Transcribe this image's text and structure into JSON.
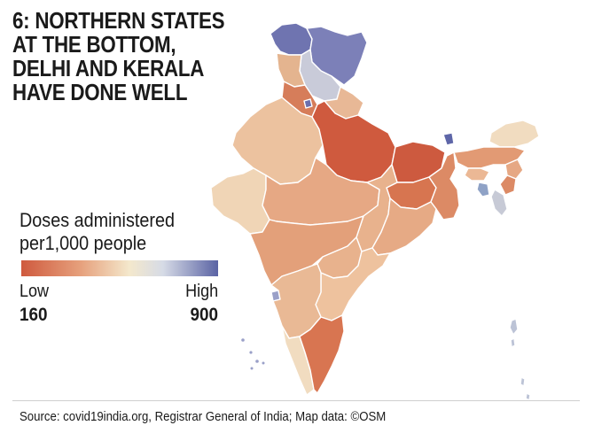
{
  "title_lines": [
    "6: NORTHERN STATES",
    "AT THE BOTTOM,",
    "DELHI AND KERALA",
    "HAVE DONE WELL"
  ],
  "legend": {
    "title_lines": [
      "Doses administered",
      "per1,000 people"
    ],
    "low_label": "Low",
    "high_label": "High",
    "min_value": "160",
    "max_value": "900",
    "color_low": "#cf5a3e",
    "color_mid": "#f4e8cc",
    "color_high": "#5a63a4"
  },
  "source": "Source: covid19india.org, Registrar General of India; Map data: ©OSM",
  "map": {
    "regions": [
      {
        "name": "jammu-kashmir",
        "color": "#6f74b0"
      },
      {
        "name": "ladakh",
        "color": "#7c80b8"
      },
      {
        "name": "himachal-pradesh",
        "color": "#c9cbd9"
      },
      {
        "name": "punjab",
        "color": "#e4b48f"
      },
      {
        "name": "uttarakhand",
        "color": "#e8b896"
      },
      {
        "name": "haryana",
        "color": "#d67d5a"
      },
      {
        "name": "delhi",
        "color": "#6a6fae"
      },
      {
        "name": "rajasthan",
        "color": "#ecc29f"
      },
      {
        "name": "uttar-pradesh",
        "color": "#cf5a3e"
      },
      {
        "name": "bihar",
        "color": "#cd5a3f"
      },
      {
        "name": "gujarat",
        "color": "#f0d5b6"
      },
      {
        "name": "madhya-pradesh",
        "color": "#e6a884"
      },
      {
        "name": "jharkhand",
        "color": "#d77550"
      },
      {
        "name": "west-bengal",
        "color": "#dc8a65"
      },
      {
        "name": "chhattisgarh",
        "color": "#e8b28d"
      },
      {
        "name": "odisha",
        "color": "#e6aa85"
      },
      {
        "name": "maharashtra",
        "color": "#e3a07a"
      },
      {
        "name": "telangana",
        "color": "#e8b28d"
      },
      {
        "name": "andhra-pradesh",
        "color": "#eec29e"
      },
      {
        "name": "goa",
        "color": "#9aa0c8"
      },
      {
        "name": "karnataka",
        "color": "#e9b995"
      },
      {
        "name": "kerala",
        "color": "#f1dcc0"
      },
      {
        "name": "tamil-nadu",
        "color": "#d87551"
      },
      {
        "name": "sikkim",
        "color": "#5e66a8"
      },
      {
        "name": "arunachal-pradesh",
        "color": "#f1dcc0"
      },
      {
        "name": "assam",
        "color": "#e29a74"
      },
      {
        "name": "meghalaya",
        "color": "#ebb895"
      },
      {
        "name": "nagaland",
        "color": "#e6a884"
      },
      {
        "name": "manipur",
        "color": "#dc8a65"
      },
      {
        "name": "mizoram",
        "color": "#c7cad6"
      },
      {
        "name": "tripura",
        "color": "#8fa2c6"
      },
      {
        "name": "andaman-nicobar",
        "color": "#bcc3d6"
      }
    ]
  }
}
